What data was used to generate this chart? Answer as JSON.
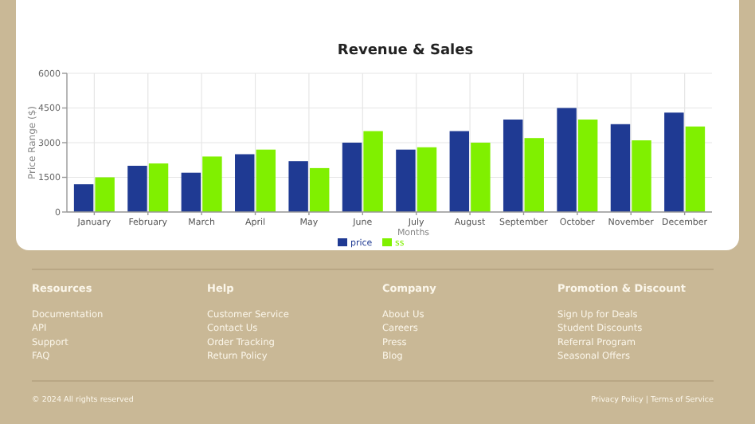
{
  "chart_data": {
    "type": "bar",
    "title": "Revenue & Sales",
    "xlabel": "Months",
    "ylabel": "Price Range ($)",
    "categories": [
      "January",
      "February",
      "March",
      "April",
      "May",
      "June",
      "July",
      "August",
      "September",
      "October",
      "November",
      "December"
    ],
    "series": [
      {
        "name": "price",
        "color": "#1f3a93",
        "values": [
          1200,
          2000,
          1700,
          2500,
          2200,
          3000,
          2700,
          3500,
          4000,
          4500,
          3800,
          4300
        ]
      },
      {
        "name": "ss",
        "color": "#80f000",
        "values": [
          1500,
          2100,
          2400,
          2700,
          1900,
          3500,
          2800,
          3000,
          3200,
          4000,
          3100,
          3700
        ]
      }
    ],
    "ylim": [
      0,
      6000
    ],
    "yticks": [
      0,
      1500,
      3000,
      4500,
      6000
    ],
    "grid": true,
    "legend": "bottom",
    "annotations": [
      "Resources",
      "Documentation",
      "API",
      "Support",
      "FAQ",
      "Help",
      "Customer Service",
      "Contact Us",
      "Order Tracking",
      "Return Policy",
      "Company",
      "About Us",
      "Careers",
      "Press",
      "Blog",
      "Promotion & Discount",
      "Sign Up for Deals",
      "Student Discounts",
      "Referral Program",
      "Seasonal Offers",
      "© 2024 All rights reserved",
      "Privacy Policy | Terms of Service"
    ]
  }
}
